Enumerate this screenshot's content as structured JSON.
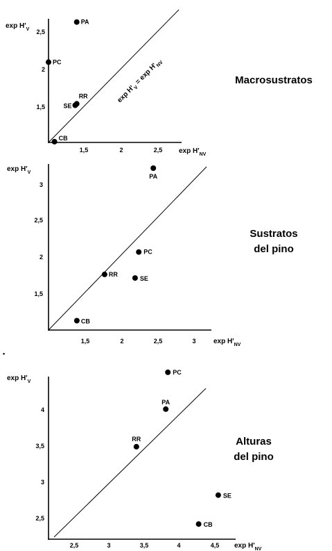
{
  "chart_data": [
    {
      "type": "scatter",
      "title": "Macrosustratos",
      "ylabel": "exp H'V",
      "xlabel": "exp H'NV",
      "x_ticks": [
        "1,5",
        "2",
        "2,5"
      ],
      "y_ticks": [
        "1,5",
        "2",
        "2,5"
      ],
      "diagonal_label": "exp H'V = exp H'NV",
      "points": [
        {
          "label": "PA",
          "x": 1.38,
          "y": 2.62
        },
        {
          "label": "PC",
          "x": 1.0,
          "y": 2.08
        },
        {
          "label": "RR",
          "x": 1.38,
          "y": 1.52
        },
        {
          "label": "SE",
          "x": 1.36,
          "y": 1.5
        },
        {
          "label": "CB",
          "x": 1.08,
          "y": 1.01
        }
      ]
    },
    {
      "type": "scatter",
      "title": "Sustratos del pino",
      "ylabel": "exp H'V",
      "xlabel": "exp H'NV",
      "x_ticks": [
        "1,5",
        "2",
        "2,5",
        "3"
      ],
      "y_ticks": [
        "1,5",
        "2",
        "2,5",
        "3"
      ],
      "points": [
        {
          "label": "PA",
          "x": 2.44,
          "y": 3.24
        },
        {
          "label": "PC",
          "x": 2.24,
          "y": 2.08
        },
        {
          "label": "RR",
          "x": 1.77,
          "y": 1.77
        },
        {
          "label": "SE",
          "x": 2.19,
          "y": 1.72
        },
        {
          "label": "CB",
          "x": 1.39,
          "y": 1.13
        }
      ]
    },
    {
      "type": "scatter",
      "title": "Alturas del pino",
      "ylabel": "exp H'V",
      "xlabel": "exp H'NV",
      "x_ticks": [
        "2,5",
        "3",
        "3,5",
        "4",
        "4,5"
      ],
      "y_ticks": [
        "2,5",
        "3",
        "3,5",
        "4"
      ],
      "points": [
        {
          "label": "PC",
          "x": 3.83,
          "y": 4.56
        },
        {
          "label": "PA",
          "x": 3.8,
          "y": 4.05
        },
        {
          "label": "RR",
          "x": 3.38,
          "y": 3.53
        },
        {
          "label": "SE",
          "x": 4.55,
          "y": 2.86
        },
        {
          "label": "CB",
          "x": 4.27,
          "y": 2.46
        }
      ]
    }
  ],
  "titles": {
    "p1": [
      "Macrosustratos"
    ],
    "p2": [
      "Sustratos",
      "del pino"
    ],
    "p3": [
      "Alturas",
      "del pino"
    ]
  },
  "corner_mark": "•"
}
